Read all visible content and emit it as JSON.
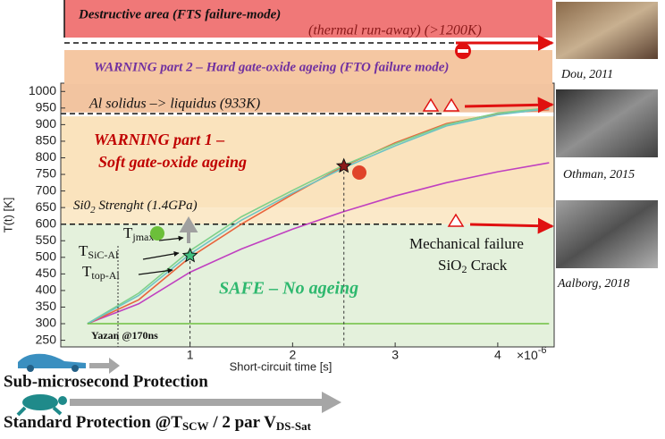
{
  "chart_data": {
    "type": "line",
    "xlabel": "Short-circuit time [s]",
    "ylabel": "T(t) [K]",
    "x_exponent": {
      "base": "×10",
      "power": "-6"
    },
    "xlim": [
      -0.26,
      4.55
    ],
    "xticks": [
      1,
      2,
      3,
      4
    ],
    "ylim": [
      230,
      1025
    ],
    "yticks": [
      250,
      300,
      350,
      400,
      450,
      500,
      550,
      600,
      650,
      700,
      750,
      800,
      850,
      900,
      950,
      1000
    ],
    "x": [
      0,
      0.5,
      1,
      1.5,
      2,
      2.5,
      3,
      3.5,
      4,
      4.5
    ],
    "series": [
      {
        "color": "#c040c0",
        "values": [
          300,
          360,
          455,
          525,
          585,
          638,
          685,
          725,
          758,
          785
        ]
      },
      {
        "color": "#e8643c",
        "values": [
          300,
          372,
          500,
          600,
          690,
          775,
          845,
          903,
          933,
          945
        ]
      },
      {
        "color": "#7fd08a",
        "values": [
          300,
          392,
          520,
          622,
          702,
          778,
          842,
          900,
          935,
          950
        ]
      },
      {
        "color": "#6ec4c4",
        "values": [
          300,
          385,
          510,
          612,
          694,
          770,
          836,
          896,
          930,
          948
        ]
      },
      {
        "color": "#6fc040",
        "values": [
          300,
          300,
          300,
          300,
          300,
          300,
          300,
          300,
          300,
          300
        ]
      }
    ],
    "zones": [
      {
        "from": 230,
        "to": 600,
        "color": "#e4f1dc"
      },
      {
        "from": 600,
        "to": 650,
        "color": "#fbe9c9"
      },
      {
        "from": 650,
        "to": 925,
        "color": "#fae3bd"
      },
      {
        "from": 937,
        "to": 1025,
        "color": "#f2c4a0"
      }
    ],
    "thresholds": [
      600,
      933
    ],
    "markers": [
      {
        "x": 1,
        "y": 505,
        "color": "#3fbf7f"
      },
      {
        "x": 2.5,
        "y": 775,
        "color": "#8b1a1a"
      }
    ]
  },
  "zones_text": {
    "destructive": "Destructive area (FTS failure-mode)",
    "runaway": "(thermal run-away) (>1200K)",
    "warning2": "WARNING part 2 – Hard gate-oxide ageing (FTO failure mode)",
    "al": "Al solidus –> liquidus (933K)",
    "warning1_a": "WARNING part 1 –",
    "warning1_b": "Soft gate-oxide ageing",
    "sio2": {
      "a": "Si0",
      "sub": "2",
      "b": " Strenght (1.4GPa)"
    },
    "safe": "SAFE – No ageing",
    "mech_a": "Mechanical failure",
    "mech_b": {
      "a": "SiO",
      "sub": "2",
      "b": " Crack"
    },
    "yazan": "Yazan @170ns"
  },
  "temperatures": {
    "jmax": {
      "main": "T",
      "sub": "jmax"
    },
    "sic": {
      "main": "T",
      "sub": "SiC-Al"
    },
    "top": {
      "main": "T",
      "sub": "top-Al"
    }
  },
  "side_figures": [
    {
      "caption": "Dou, 2011"
    },
    {
      "caption": "Othman, 2015"
    },
    {
      "caption": "Aalborg, 2018"
    }
  ],
  "protection": {
    "fast": "Sub-microsecond Protection",
    "standard": {
      "a": "Standard Protection @T",
      "sub1": "SCW",
      "b": " / 2 par V",
      "sub2": "DS-Sat"
    }
  }
}
